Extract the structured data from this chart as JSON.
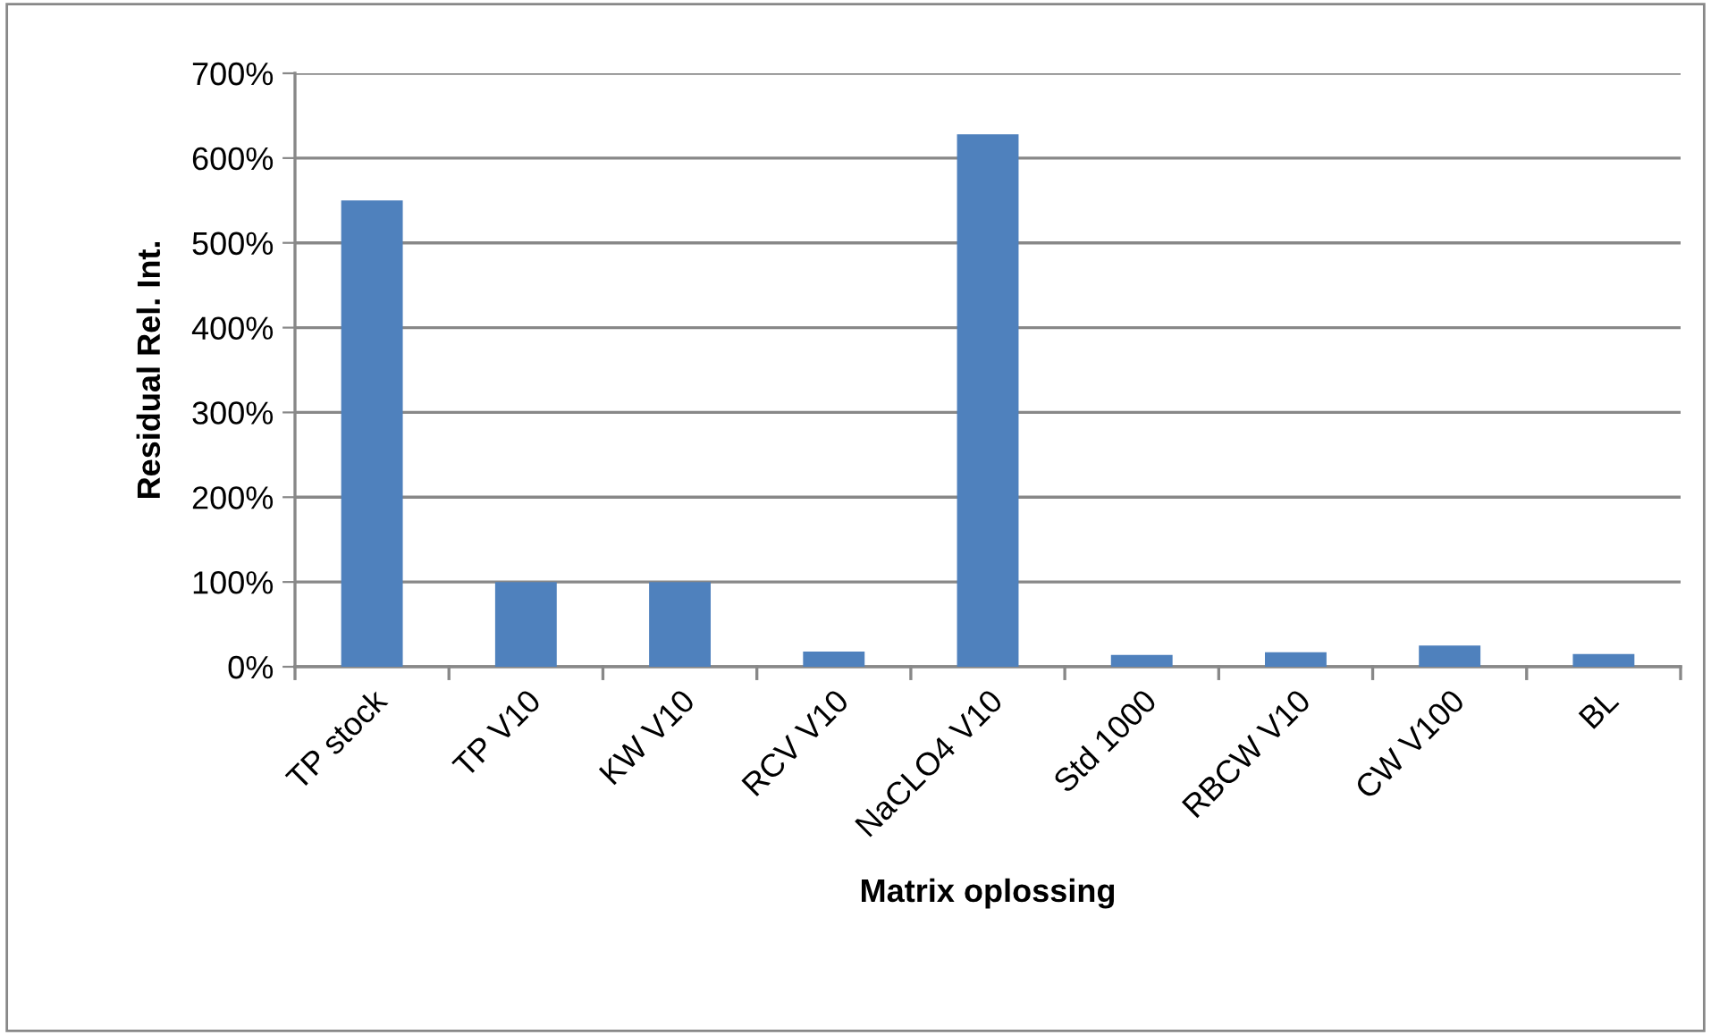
{
  "chart_data": {
    "type": "bar",
    "xlabel": "Matrix oplossing",
    "ylabel": "Residual Rel. Int.",
    "categories": [
      "TP stock",
      "TP V10",
      "KW V10",
      "RCV V10",
      "NaCLO4 V10",
      "Std 1000",
      "RBCW V10",
      "CW V100",
      "BL"
    ],
    "values": [
      550,
      100,
      100,
      18,
      628,
      14,
      17,
      25,
      15
    ],
    "color": "#4f81bd",
    "ylim": [
      0,
      700
    ],
    "yticks": [
      {
        "value": 0,
        "label": "0%"
      },
      {
        "value": 100,
        "label": "100%"
      },
      {
        "value": 200,
        "label": "200%"
      },
      {
        "value": 300,
        "label": "300%"
      },
      {
        "value": 400,
        "label": "400%"
      },
      {
        "value": 500,
        "label": "500%"
      },
      {
        "value": 600,
        "label": "600%"
      },
      {
        "value": 700,
        "label": "700%"
      }
    ],
    "grid": "y",
    "legend": false
  }
}
